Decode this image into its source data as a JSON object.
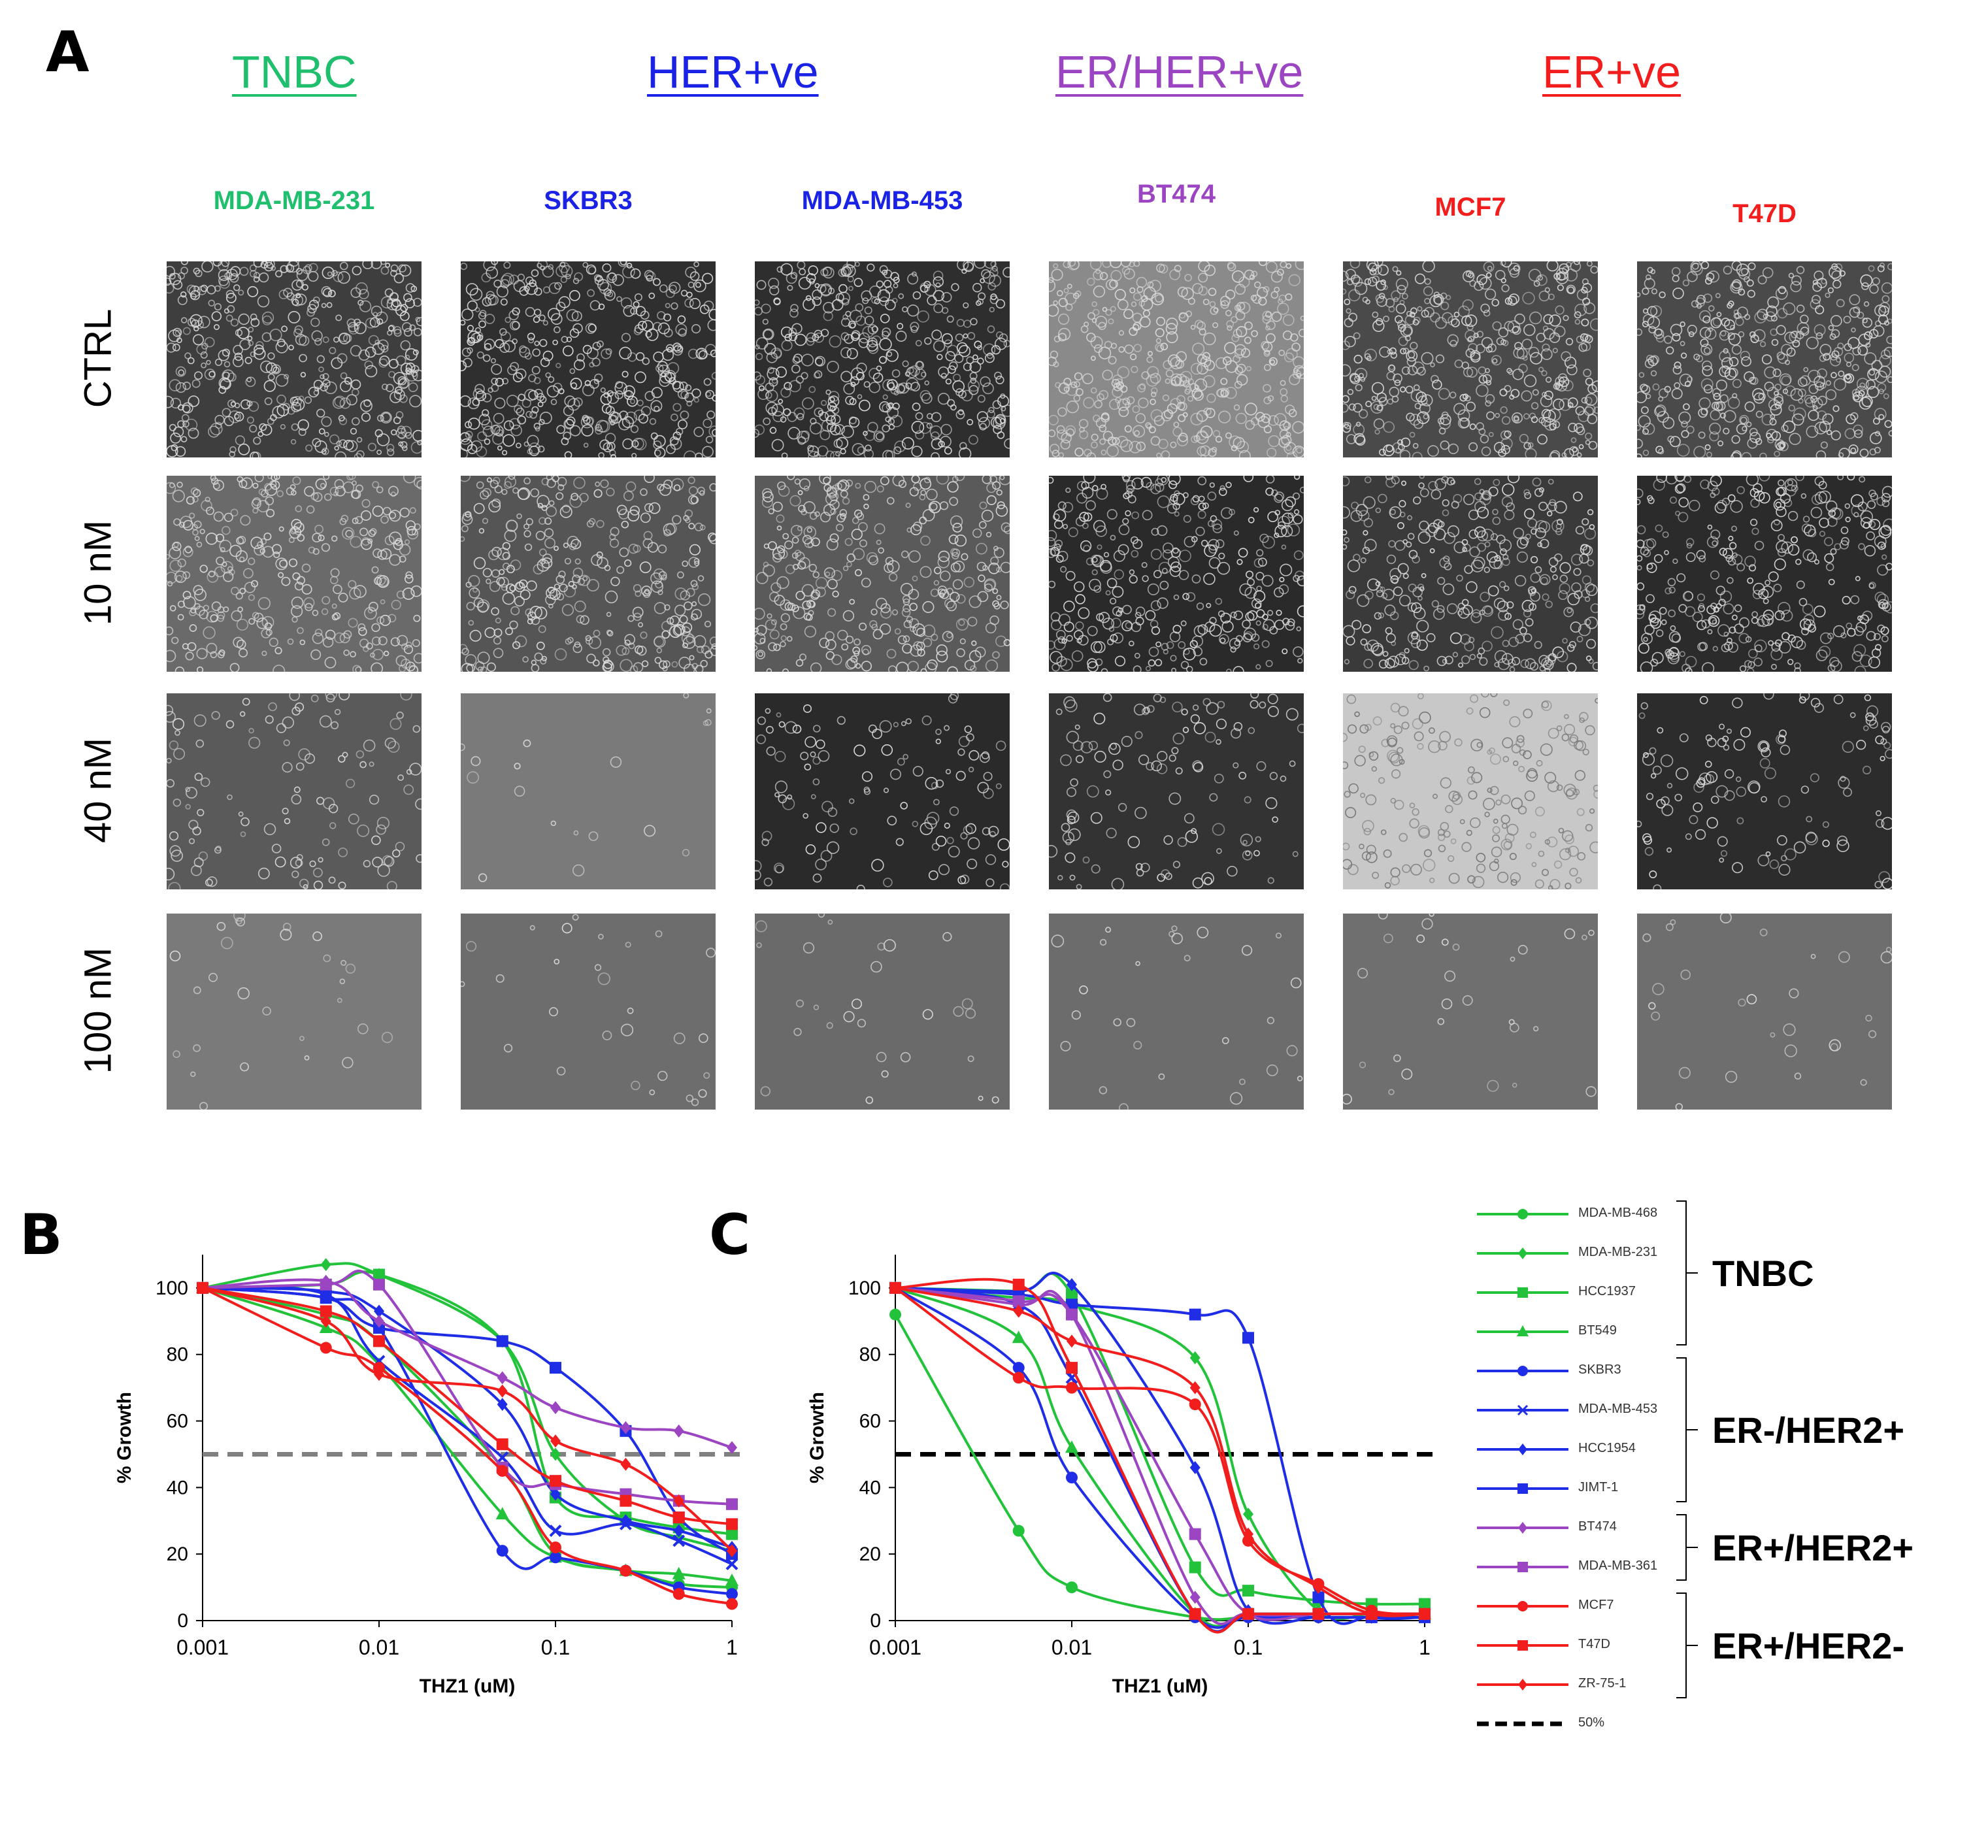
{
  "figure": {
    "panel_a": {
      "letter": "A",
      "groups": [
        {
          "label": "TNBC",
          "color": "#1fbf6e"
        },
        {
          "label": "HER+ve",
          "color": "#1a22e6"
        },
        {
          "label": "ER/HER+ve",
          "color": "#9b45c2"
        },
        {
          "label": "ER+ve",
          "color": "#f21d1d"
        }
      ],
      "cell_lines": [
        {
          "label": "MDA-MB-231",
          "color": "#1fbf6e"
        },
        {
          "label": "SKBR3",
          "color": "#1a22e6"
        },
        {
          "label": "MDA-MB-453",
          "color": "#1a22e6"
        },
        {
          "label": "BT474",
          "color": "#9b45c2"
        },
        {
          "label": "MCF7",
          "color": "#f21d1d"
        },
        {
          "label": "T47D",
          "color": "#f21d1d"
        }
      ],
      "rows": [
        "CTRL",
        "10 nM",
        "40 nM",
        "100 nM"
      ]
    },
    "panel_b": {
      "letter": "B"
    },
    "panel_c": {
      "letter": "C"
    },
    "group_brackets": [
      "TNBC",
      "ER-/HER2+",
      "ER+/HER2+",
      "ER+/HER2-"
    ]
  },
  "chart_data": [
    {
      "panel": "B",
      "type": "line",
      "xlabel": "THZ1 (uM)",
      "ylabel": "% Growth",
      "x_scale": "log",
      "xlim": [
        0.001,
        1
      ],
      "ylim": [
        0,
        110
      ],
      "x_ticks": [
        "0.001",
        "0.01",
        "0.1",
        "1"
      ],
      "y_ticks": [
        "0",
        "20",
        "40",
        "60",
        "80",
        "100"
      ],
      "reference_line": {
        "y": 50,
        "color": "#808080",
        "style": "dashed"
      },
      "x": [
        0.001,
        0.005,
        0.01,
        0.05,
        0.1,
        0.25,
        0.5,
        1
      ],
      "series": [
        {
          "name": "MDA-MB-468",
          "color": "#22c33a",
          "marker": "circle",
          "values": [
            100,
            92,
            84,
            46,
            20,
            15,
            11,
            10
          ]
        },
        {
          "name": "MDA-MB-231",
          "color": "#22c33a",
          "marker": "diamond",
          "values": [
            100,
            107,
            104,
            84,
            50,
            30,
            25,
            21
          ]
        },
        {
          "name": "HCC1937",
          "color": "#22c33a",
          "marker": "square",
          "values": [
            100,
            101,
            104,
            84,
            37,
            31,
            28,
            26
          ]
        },
        {
          "name": "BT549",
          "color": "#22c33a",
          "marker": "triangle",
          "values": [
            100,
            88,
            77,
            32,
            19,
            15,
            14,
            12
          ]
        },
        {
          "name": "SKBR3",
          "color": "#1f2ee6",
          "marker": "circle",
          "values": [
            100,
            97,
            88,
            21,
            19,
            15,
            10,
            8
          ]
        },
        {
          "name": "MDA-MB-453",
          "color": "#1f2ee6",
          "marker": "x",
          "values": [
            100,
            98,
            78,
            49,
            27,
            29,
            24,
            17
          ]
        },
        {
          "name": "HCC1954",
          "color": "#1f2ee6",
          "marker": "diamond",
          "values": [
            100,
            99,
            93,
            65,
            38,
            30,
            27,
            22
          ]
        },
        {
          "name": "JIMT-1",
          "color": "#1f2ee6",
          "marker": "square",
          "values": [
            100,
            97,
            88,
            84,
            76,
            57,
            31,
            20
          ]
        },
        {
          "name": "BT474",
          "color": "#9b45c2",
          "marker": "diamond",
          "values": [
            100,
            102,
            90,
            73,
            64,
            58,
            57,
            52
          ]
        },
        {
          "name": "MDA-MB-361",
          "color": "#9b45c2",
          "marker": "square",
          "values": [
            100,
            101,
            101,
            46,
            41,
            38,
            36,
            35
          ]
        },
        {
          "name": "MCF7",
          "color": "#f21d1d",
          "marker": "circle",
          "values": [
            100,
            82,
            76,
            45,
            22,
            15,
            8,
            5
          ]
        },
        {
          "name": "T47D",
          "color": "#f21d1d",
          "marker": "square",
          "values": [
            100,
            93,
            84,
            53,
            42,
            36,
            31,
            29
          ]
        },
        {
          "name": "ZR-75-1",
          "color": "#f21d1d",
          "marker": "diamond",
          "values": [
            100,
            90,
            74,
            69,
            54,
            47,
            36,
            21
          ]
        }
      ]
    },
    {
      "panel": "C",
      "type": "line",
      "xlabel": "THZ1 (uM)",
      "ylabel": "% Growth",
      "x_scale": "log",
      "xlim": [
        0.001,
        1
      ],
      "ylim": [
        0,
        110
      ],
      "x_ticks": [
        "0.001",
        "0.01",
        "0.1",
        "1"
      ],
      "y_ticks": [
        "0",
        "20",
        "40",
        "60",
        "80",
        "100"
      ],
      "reference_line": {
        "y": 50,
        "color": "#000000",
        "style": "dashed",
        "name": "50%"
      },
      "x": [
        0.001,
        0.005,
        0.01,
        0.05,
        0.1,
        0.25,
        0.5,
        1
      ],
      "series": [
        {
          "name": "MDA-MB-468",
          "color": "#22c33a",
          "marker": "circle",
          "values": [
            92,
            27,
            10,
            1,
            1,
            1,
            1,
            1
          ]
        },
        {
          "name": "MDA-MB-231",
          "color": "#22c33a",
          "marker": "diamond",
          "values": [
            100,
            97,
            95,
            79,
            32,
            3,
            2,
            2
          ]
        },
        {
          "name": "HCC1937",
          "color": "#22c33a",
          "marker": "square",
          "values": [
            100,
            99,
            98,
            16,
            9,
            6,
            5,
            5
          ]
        },
        {
          "name": "BT549",
          "color": "#22c33a",
          "marker": "triangle",
          "values": [
            100,
            85,
            52,
            2,
            2,
            2,
            2,
            2
          ]
        },
        {
          "name": "SKBR3",
          "color": "#1f2ee6",
          "marker": "circle",
          "values": [
            100,
            76,
            43,
            1,
            1,
            1,
            1,
            1
          ]
        },
        {
          "name": "MDA-MB-453",
          "color": "#1f2ee6",
          "marker": "x",
          "values": [
            100,
            95,
            73,
            2,
            2,
            2,
            2,
            2
          ]
        },
        {
          "name": "HCC1954",
          "color": "#1f2ee6",
          "marker": "diamond",
          "values": [
            100,
            99,
            101,
            46,
            3,
            1,
            1,
            1
          ]
        },
        {
          "name": "JIMT-1",
          "color": "#1f2ee6",
          "marker": "square",
          "values": [
            100,
            98,
            95,
            92,
            85,
            7,
            1,
            1
          ]
        },
        {
          "name": "BT474",
          "color": "#9b45c2",
          "marker": "diamond",
          "values": [
            100,
            95,
            92,
            7,
            2,
            2,
            2,
            2
          ]
        },
        {
          "name": "MDA-MB-361",
          "color": "#9b45c2",
          "marker": "square",
          "values": [
            100,
            96,
            92,
            26,
            2,
            2,
            2,
            2
          ]
        },
        {
          "name": "MCF7",
          "color": "#f21d1d",
          "marker": "circle",
          "values": [
            100,
            73,
            70,
            65,
            24,
            11,
            3,
            2
          ]
        },
        {
          "name": "T47D",
          "color": "#f21d1d",
          "marker": "square",
          "values": [
            100,
            101,
            76,
            2,
            2,
            2,
            2,
            2
          ]
        },
        {
          "name": "ZR-75-1",
          "color": "#f21d1d",
          "marker": "diamond",
          "values": [
            100,
            93,
            84,
            70,
            26,
            10,
            2,
            2
          ]
        }
      ],
      "legend": {
        "placement": "right",
        "entries": [
          "MDA-MB-468",
          "MDA-MB-231",
          "HCC1937",
          "BT549",
          "SKBR3",
          "MDA-MB-453",
          "HCC1954",
          "JIMT-1",
          "BT474",
          "MDA-MB-361",
          "MCF7",
          "T47D",
          "ZR-75-1",
          "50%"
        ]
      }
    }
  ]
}
